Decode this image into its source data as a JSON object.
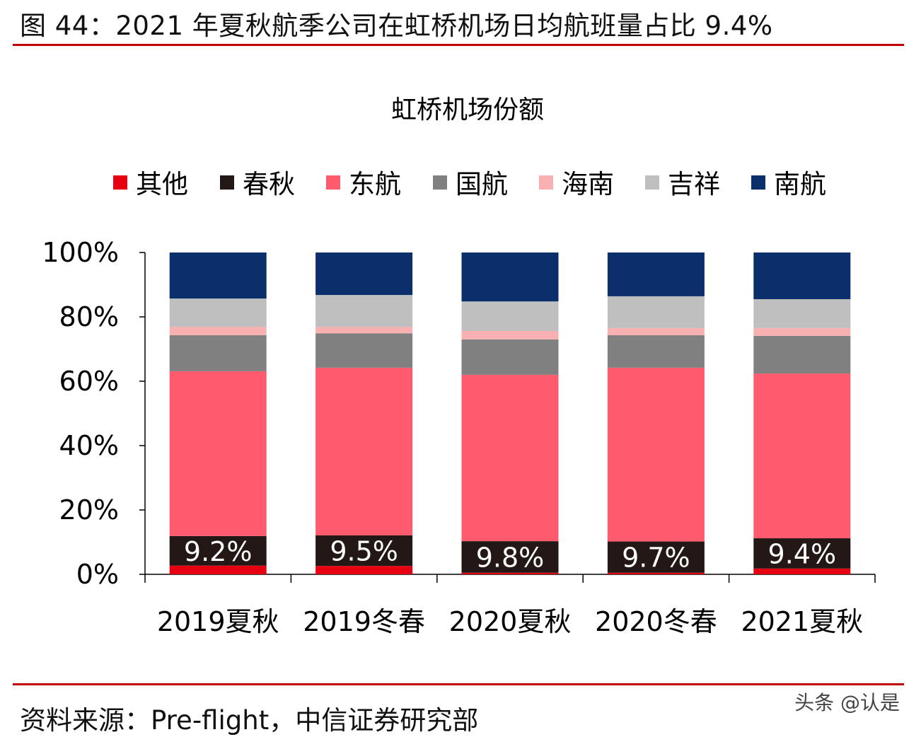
{
  "header": {
    "title": "图 44：2021 年夏秋航季公司在虹桥机场日均航班量占比 9.4%"
  },
  "footer": {
    "source": "资料来源：Pre-flight，中信证券研究部",
    "watermark": "头条 @认是"
  },
  "chart_data": {
    "type": "bar",
    "stacked": true,
    "title": "虹桥机场份额",
    "xlabel": "",
    "ylabel": "",
    "ylim": [
      0,
      100
    ],
    "yticks": [
      "0%",
      "20%",
      "40%",
      "60%",
      "80%",
      "100%"
    ],
    "legend_position": "top",
    "categories": [
      "2019夏秋",
      "2019冬春",
      "2020夏秋",
      "2020冬春",
      "2021夏秋"
    ],
    "series": [
      {
        "name": "其他",
        "color": "#e60012",
        "values": [
          2.7,
          2.6,
          0.5,
          0.5,
          1.8
        ]
      },
      {
        "name": "春秋",
        "color": "#231815",
        "values": [
          9.2,
          9.5,
          9.8,
          9.7,
          9.4
        ]
      },
      {
        "name": "东航",
        "color": "#ff5a6e",
        "values": [
          51.2,
          52.1,
          51.7,
          54.0,
          51.2
        ]
      },
      {
        "name": "国航",
        "color": "#808080",
        "values": [
          11.2,
          10.7,
          11.0,
          10.1,
          11.7
        ]
      },
      {
        "name": "海南",
        "color": "#f9b0b0",
        "values": [
          2.6,
          2.0,
          2.6,
          2.2,
          2.4
        ]
      },
      {
        "name": "吉祥",
        "color": "#bfbfbf",
        "values": [
          8.8,
          9.9,
          9.2,
          9.9,
          9.0
        ]
      },
      {
        "name": "南航",
        "color": "#0a2f6b",
        "values": [
          14.3,
          13.2,
          15.2,
          13.6,
          14.5
        ]
      }
    ],
    "data_labels": [
      "9.2%",
      "9.5%",
      "9.8%",
      "9.7%",
      "9.4%"
    ]
  }
}
